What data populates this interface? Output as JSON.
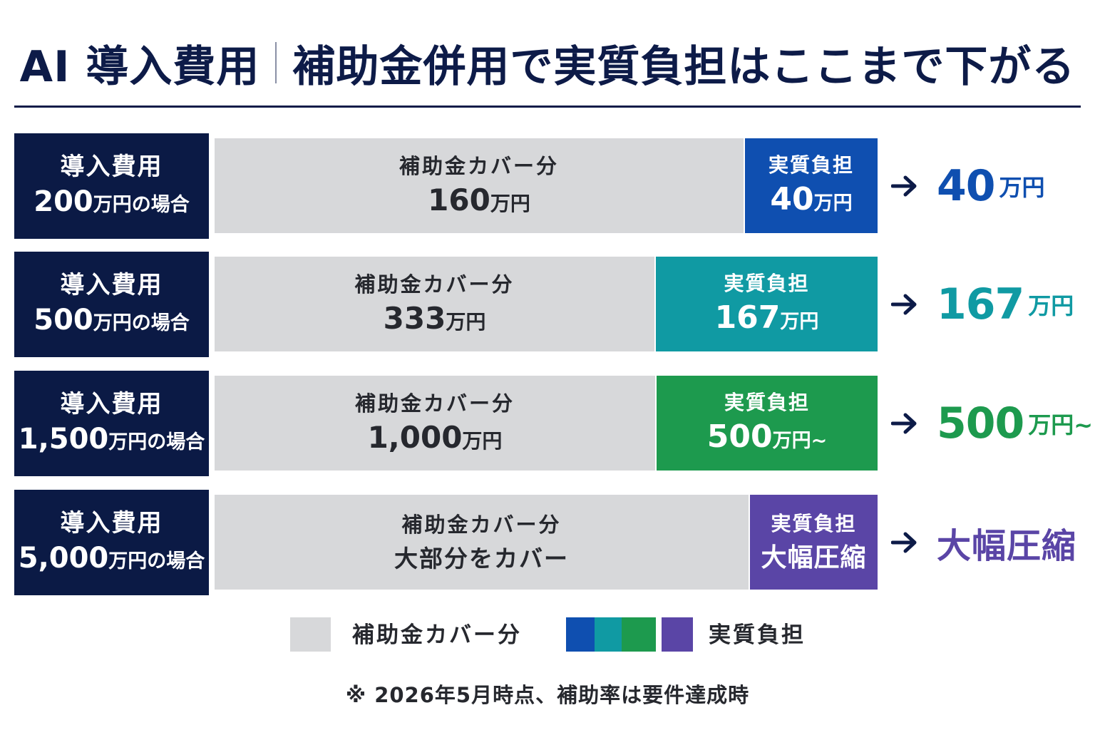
{
  "title": {
    "part1": "AI 導入費用",
    "part2": "補助金併用で実質負担はここまで下がる"
  },
  "colors": {
    "navy": "#0b1a45",
    "cover": "#d7d8da",
    "blue": "#0f4fb0",
    "teal": "#109aa3",
    "green": "#1d9a4e",
    "purple": "#5a45a6"
  },
  "chart_data": {
    "type": "bar",
    "stacked": true,
    "orientation": "horizontal",
    "unit": "万円",
    "categories": [
      "導入費用 200万円の場合",
      "導入費用 500万円の場合",
      "導入費用 1,500万円の場合",
      "導入費用 5,000万円の場合"
    ],
    "series": [
      {
        "name": "補助金カバー分",
        "values": [
          160,
          333,
          1000,
          null
        ]
      },
      {
        "name": "実質負担",
        "values": [
          40,
          167,
          500,
          null
        ]
      }
    ],
    "legend": "bottom"
  },
  "rows": [
    {
      "label_line1": "導入費用",
      "label_num": "200",
      "label_suffix": "万円の場合",
      "cover_label": "補助金カバー分",
      "cover_num": "160",
      "cover_unit": "万円",
      "cover_text": "",
      "burden_label": "実質負担",
      "burden_num": "40",
      "burden_unit": "万円",
      "burden_text": "",
      "burden_share": 0.2,
      "color": "#0f4fb0",
      "result_num": "40",
      "result_unit": "万円",
      "result_text": ""
    },
    {
      "label_line1": "導入費用",
      "label_num": "500",
      "label_suffix": "万円の場合",
      "cover_label": "補助金カバー分",
      "cover_num": "333",
      "cover_unit": "万円",
      "cover_text": "",
      "burden_label": "実質負担",
      "burden_num": "167",
      "burden_unit": "万円",
      "burden_text": "",
      "burden_share": 0.334,
      "color": "#109aa3",
      "result_num": "167",
      "result_unit": "万円",
      "result_text": ""
    },
    {
      "label_line1": "導入費用",
      "label_num": "1,500",
      "label_suffix": "万円の場合",
      "cover_label": "補助金カバー分",
      "cover_num": "1,000",
      "cover_unit": "万円",
      "cover_text": "",
      "burden_label": "実質負担",
      "burden_num": "500",
      "burden_unit": "万円~",
      "burden_text": "",
      "burden_share": 0.3333,
      "color": "#1d9a4e",
      "result_num": "500",
      "result_unit": "万円~",
      "result_text": ""
    },
    {
      "label_line1": "導入費用",
      "label_num": "5,000",
      "label_suffix": "万円の場合",
      "cover_label": "補助金カバー分",
      "cover_num": "",
      "cover_unit": "",
      "cover_text": "大部分をカバー",
      "burden_label": "実質負担",
      "burden_num": "",
      "burden_unit": "",
      "burden_text": "大幅圧縮",
      "burden_share": 0.193,
      "color": "#5a45a6",
      "result_num": "",
      "result_unit": "",
      "result_text": "大幅圧縮"
    }
  ],
  "legend": {
    "cover_label": "補助金カバー分",
    "burden_label": "実質負担"
  },
  "footnote": "※ 2026年5月時点、補助率は要件達成時"
}
